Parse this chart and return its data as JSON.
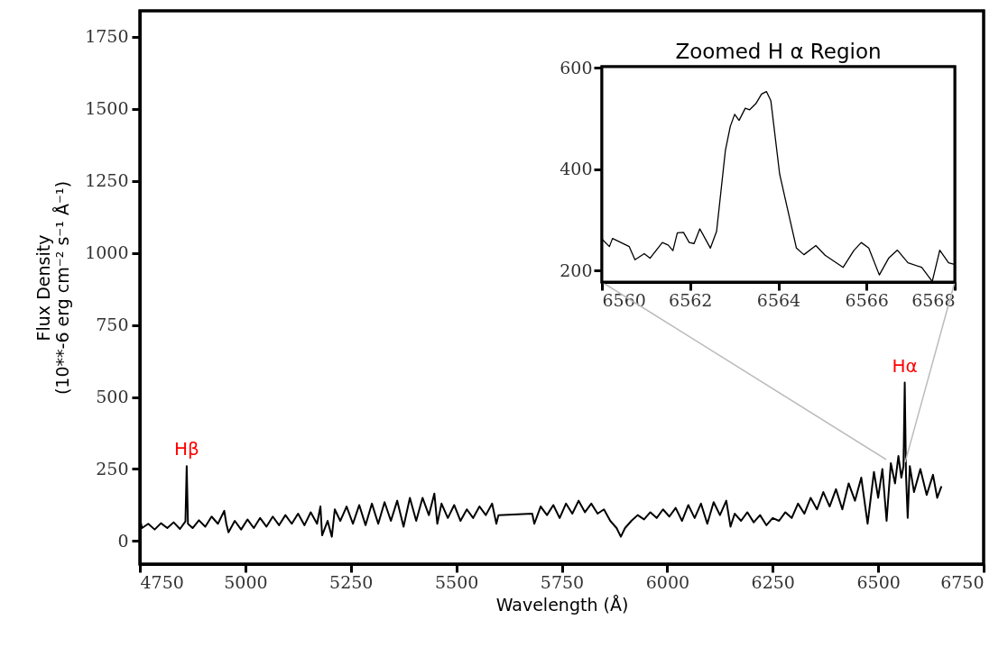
{
  "chart_data": [
    {
      "type": "line",
      "xlabel": "Wavelength (Å)",
      "ylabel": "Flux Density\n(10**-6 erg cm⁻² s⁻¹ Å⁻¹)",
      "xlim": [
        4750,
        6750
      ],
      "ylim": [
        -80,
        1840
      ],
      "xticks": [
        4750,
        5000,
        5250,
        5500,
        5750,
        6000,
        6250,
        6500,
        6750
      ],
      "yticks": [
        0,
        250,
        500,
        750,
        1000,
        1250,
        1500,
        1750
      ],
      "grid": false,
      "annotations": [
        {
          "text": "Hβ",
          "x": 4861,
          "y": 260
        },
        {
          "text": "Hα",
          "x": 6563,
          "y": 550
        }
      ],
      "series": [
        {
          "color": "#000000",
          "x": [
            4750,
            4755,
            4770,
            4785,
            4800,
            4815,
            4830,
            4845,
            4858,
            4861,
            4864,
            4875,
            4890,
            4905,
            4920,
            4935,
            4950,
            4955,
            4960,
            4975,
            4990,
            5005,
            5020,
            5035,
            5050,
            5065,
            5080,
            5095,
            5110,
            5125,
            5140,
            5155,
            5170,
            5178,
            5182,
            5195,
            5205,
            5212,
            5225,
            5240,
            5255,
            5270,
            5285,
            5300,
            5315,
            5330,
            5345,
            5360,
            5375,
            5390,
            5405,
            5420,
            5435,
            5448,
            5455,
            5465,
            5480,
            5495,
            5510,
            5525,
            5540,
            5555,
            5570,
            5585,
            5595,
            5600,
            5680,
            5685,
            5700,
            5715,
            5730,
            5745,
            5760,
            5775,
            5790,
            5805,
            5820,
            5835,
            5850,
            5865,
            5880,
            5890,
            5900,
            5915,
            5930,
            5945,
            5960,
            5975,
            5990,
            6005,
            6020,
            6035,
            6050,
            6065,
            6080,
            6095,
            6110,
            6125,
            6140,
            6150,
            6160,
            6175,
            6190,
            6205,
            6220,
            6235,
            6250,
            6265,
            6280,
            6295,
            6310,
            6325,
            6340,
            6355,
            6370,
            6385,
            6400,
            6415,
            6430,
            6445,
            6460,
            6475,
            6490,
            6500,
            6510,
            6520,
            6530,
            6540,
            6548,
            6555,
            6560,
            6563,
            6566,
            6570,
            6575,
            6585,
            6600,
            6615,
            6630,
            6640,
            6650
          ],
          "values": [
            80,
            45,
            60,
            40,
            62,
            45,
            65,
            42,
            68,
            260,
            60,
            45,
            72,
            50,
            85,
            60,
            105,
            60,
            30,
            70,
            40,
            75,
            45,
            80,
            50,
            85,
            55,
            90,
            60,
            95,
            55,
            100,
            60,
            120,
            20,
            70,
            15,
            110,
            70,
            120,
            60,
            125,
            55,
            130,
            60,
            135,
            70,
            140,
            50,
            150,
            70,
            150,
            90,
            165,
            60,
            130,
            80,
            125,
            70,
            110,
            80,
            120,
            90,
            130,
            60,
            90,
            95,
            60,
            120,
            90,
            125,
            80,
            130,
            95,
            140,
            100,
            130,
            95,
            110,
            70,
            45,
            15,
            45,
            70,
            90,
            75,
            100,
            80,
            110,
            85,
            115,
            70,
            125,
            80,
            130,
            60,
            135,
            90,
            140,
            50,
            95,
            70,
            100,
            65,
            90,
            55,
            80,
            70,
            100,
            80,
            130,
            95,
            150,
            110,
            170,
            120,
            180,
            110,
            200,
            140,
            220,
            60,
            240,
            150,
            250,
            70,
            270,
            200,
            295,
            220,
            260,
            550,
            230,
            80,
            260,
            170,
            250,
            160,
            230,
            150,
            190
          ]
        }
      ]
    },
    {
      "type": "line",
      "title": "Zoomed H α Region",
      "xlim": [
        6560,
        6568
      ],
      "ylim": [
        177,
        602
      ],
      "xticks": [
        6560,
        6562,
        6564,
        6566,
        6568
      ],
      "yticks": [
        200,
        400,
        600
      ],
      "grid": false,
      "series": [
        {
          "color": "#000000",
          "x": [
            6560,
            6560.17,
            6560.24,
            6560.41,
            6560.62,
            6560.75,
            6560.96,
            6561.09,
            6561.37,
            6561.5,
            6561.61,
            6561.71,
            6561.85,
            6561.98,
            6562.09,
            6562.22,
            6562.46,
            6562.6,
            6562.8,
            6562.91,
            6563.01,
            6563.11,
            6563.25,
            6563.35,
            6563.49,
            6563.62,
            6563.73,
            6563.83,
            6564.03,
            6564.17,
            6564.41,
            6564.58,
            6564.85,
            6565.06,
            6565.47,
            6565.71,
            6565.88,
            6566.05,
            6566.29,
            6566.5,
            6566.7,
            6566.94,
            6567.25,
            6567.49,
            6567.66,
            6567.86,
            6567.99
          ],
          "values": [
            262,
            247,
            263,
            256,
            247,
            221,
            233,
            224,
            255,
            250,
            239,
            274,
            275,
            255,
            253,
            282,
            244,
            277,
            437,
            484,
            508,
            496,
            520,
            517,
            529,
            548,
            553,
            535,
            390,
            336,
            244,
            231,
            249,
            230,
            206,
            239,
            255,
            244,
            191,
            224,
            240,
            215,
            206,
            178,
            240,
            215,
            212
          ]
        }
      ]
    }
  ]
}
